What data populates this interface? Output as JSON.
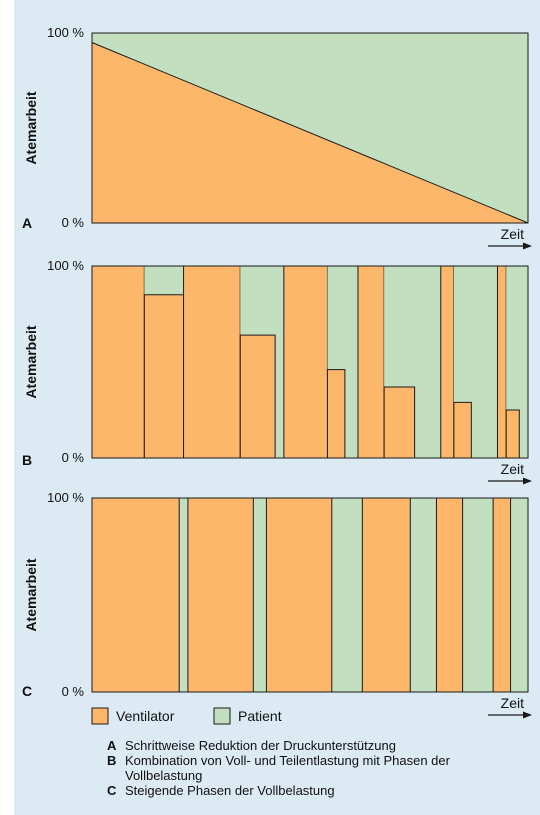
{
  "colors": {
    "ventilator": "#fcb76b",
    "patient": "#c2dfbf",
    "background": "#dceaf3",
    "stroke": "#1a1a1a"
  },
  "chart_data": [
    {
      "panel": "A",
      "type": "area",
      "ylabel": "Atemarbeit",
      "xlabel": "Zeit",
      "y_ticks": [
        "100 %",
        "0 %"
      ],
      "ylim": [
        0,
        100
      ],
      "x_range": [
        0,
        100
      ],
      "ventilator_share": [
        {
          "x": 0,
          "y": 95
        },
        {
          "x": 100,
          "y": 0
        }
      ]
    },
    {
      "panel": "B",
      "type": "bar",
      "ylabel": "Atemarbeit",
      "xlabel": "Zeit",
      "y_ticks": [
        "100 %",
        "0 %"
      ],
      "ylim": [
        0,
        100
      ],
      "x_range": [
        0,
        100
      ],
      "ventilator_segments": [
        {
          "x_start": 0,
          "x_end": 12,
          "level": 100
        },
        {
          "x_start": 12,
          "x_end": 21,
          "level": 85
        },
        {
          "x_start": 21,
          "x_end": 34,
          "level": 100
        },
        {
          "x_start": 34,
          "x_end": 42,
          "level": 64
        },
        {
          "x_start": 44,
          "x_end": 54,
          "level": 100
        },
        {
          "x_start": 54,
          "x_end": 58,
          "level": 46
        },
        {
          "x_start": 61,
          "x_end": 67,
          "level": 100
        },
        {
          "x_start": 67,
          "x_end": 74,
          "level": 37
        },
        {
          "x_start": 80,
          "x_end": 83,
          "level": 100
        },
        {
          "x_start": 83,
          "x_end": 87,
          "level": 29
        },
        {
          "x_start": 93,
          "x_end": 95,
          "level": 100
        },
        {
          "x_start": 95,
          "x_end": 98,
          "level": 25
        }
      ]
    },
    {
      "panel": "C",
      "type": "bar",
      "ylabel": "Atemarbeit",
      "xlabel": "Zeit",
      "y_ticks": [
        "100 %",
        "0 %"
      ],
      "ylim": [
        0,
        100
      ],
      "x_range": [
        0,
        100
      ],
      "ventilator_segments": [
        {
          "x_start": 0,
          "x_end": 20,
          "level": 100
        },
        {
          "x_start": 22,
          "x_end": 37,
          "level": 100
        },
        {
          "x_start": 40,
          "x_end": 55,
          "level": 100
        },
        {
          "x_start": 62,
          "x_end": 73,
          "level": 100
        },
        {
          "x_start": 79,
          "x_end": 85,
          "level": 100
        },
        {
          "x_start": 92,
          "x_end": 96,
          "level": 100
        }
      ]
    }
  ],
  "legend": [
    {
      "label": "Ventilator",
      "color": "#fcb76b"
    },
    {
      "label": "Patient",
      "color": "#c2dfbf"
    }
  ],
  "captions": [
    {
      "letter": "A",
      "text": "Schrittweise Reduktion der Druckunterstützung"
    },
    {
      "letter": "B",
      "text": "Kombination von Voll- und Teilentlastung mit Phasen der Vollbelastung"
    },
    {
      "letter": "C",
      "text": "Steigende Phasen der Vollbelastung"
    }
  ]
}
